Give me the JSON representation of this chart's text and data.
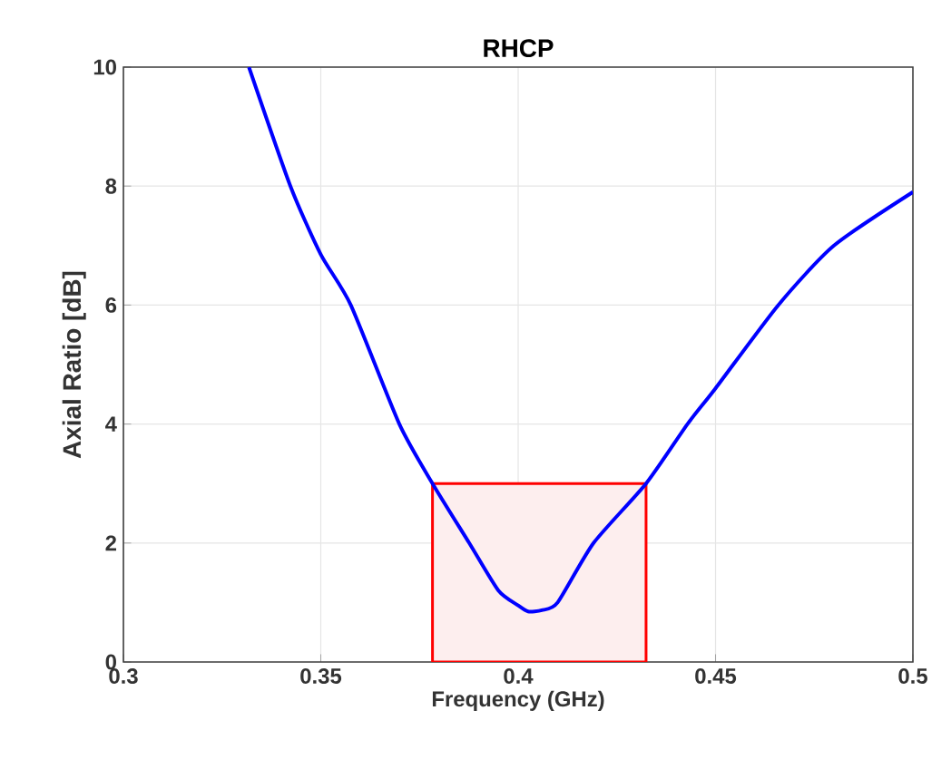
{
  "chart_data": {
    "type": "line",
    "title": "RHCP",
    "xlabel": "Frequency (GHz)",
    "ylabel": "Axial Ratio [dB]",
    "x": [
      0.3318,
      0.3423,
      0.35,
      0.3576,
      0.3699,
      0.3783,
      0.3876,
      0.395,
      0.4,
      0.4025,
      0.406,
      0.41,
      0.4191,
      0.4324,
      0.4429,
      0.45,
      0.4659,
      0.48,
      0.5
    ],
    "series": [
      {
        "color": "#0000ff",
        "values": [
          10,
          8,
          6.85,
          6,
          4,
          3,
          2,
          1.2,
          0.95,
          0.85,
          0.87,
          1.0,
          2,
          3,
          4,
          4.6,
          6,
          7.0,
          7.9
        ]
      }
    ],
    "xlim": [
      0.3,
      0.5
    ],
    "ylim": [
      0,
      10
    ],
    "xticks": [
      0.3,
      0.35,
      0.4,
      0.45,
      0.5
    ],
    "yticks": [
      0,
      2,
      4,
      6,
      8,
      10
    ],
    "bands": [
      {
        "axis": "x",
        "from": 0.3783,
        "to": 0.4324,
        "color": "#fdeeee"
      }
    ],
    "grid": true,
    "marker": "none",
    "line_style": "solid"
  }
}
